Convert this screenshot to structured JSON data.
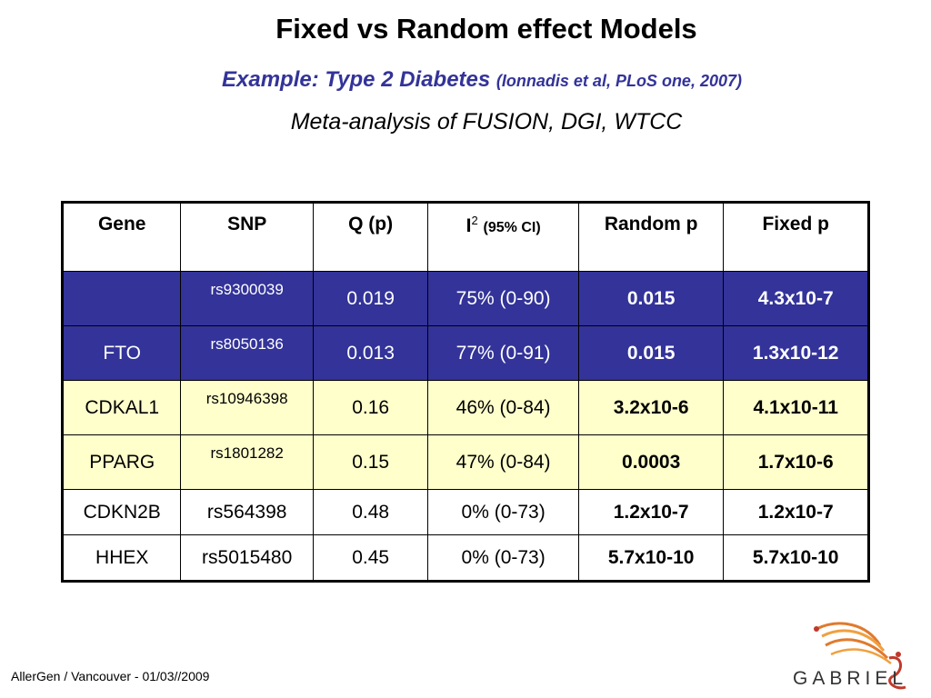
{
  "slide": {
    "title": "Fixed vs Random effect Models",
    "subtitle_main": "Example: Type 2 Diabetes",
    "subtitle_cite": "(Ionnadis et al, PLoS one, 2007)",
    "subtitle2": "Meta-analysis of FUSION, DGI, WTCC"
  },
  "table": {
    "headers": {
      "gene": "Gene",
      "snp": "SNP",
      "q": "Q (p)",
      "i_main": "I",
      "i_sup": "2",
      "i_ci": "(95% CI)",
      "random": "Random p",
      "fixed": "Fixed p"
    },
    "rows": [
      {
        "gene": "",
        "snp": "rs9300039",
        "q": "0.019",
        "i2": "75% (0-90)",
        "random": "0.015",
        "fixed": "4.3x10-7"
      },
      {
        "gene": "FTO",
        "snp": "rs8050136",
        "q": "0.013",
        "i2": "77% (0-91)",
        "random": "0.015",
        "fixed": "1.3x10-12"
      },
      {
        "gene": "CDKAL1",
        "snp": "rs10946398",
        "q": "0.16",
        "i2": "46% (0-84)",
        "random": "3.2x10-6",
        "fixed": "4.1x10-11"
      },
      {
        "gene": "PPARG",
        "snp": "rs1801282",
        "q": "0.15",
        "i2": "47% (0-84)",
        "random": "0.0003",
        "fixed": "1.7x10-6"
      },
      {
        "gene": "CDKN2B",
        "snp": "rs564398",
        "q": "0.48",
        "i2": "0% (0-73)",
        "random": "1.2x10-7",
        "fixed": "1.2x10-7"
      },
      {
        "gene": "HHEX",
        "snp": "rs5015480",
        "q": "0.45",
        "i2": "0% (0-73)",
        "random": "5.7x10-10",
        "fixed": "5.7x10-10"
      }
    ]
  },
  "footer": {
    "text": "AllerGen / Vancouver - 01/03//2009"
  },
  "logo": {
    "text": "GABRIEL",
    "icon": "gabriel-logo-icon",
    "colors": [
      "#e07a2e",
      "#c0392b",
      "#f0a040"
    ]
  },
  "colors": {
    "highlight_blue": "#333399",
    "highlight_yellow": "#ffffcc",
    "subtitle": "#333399"
  }
}
